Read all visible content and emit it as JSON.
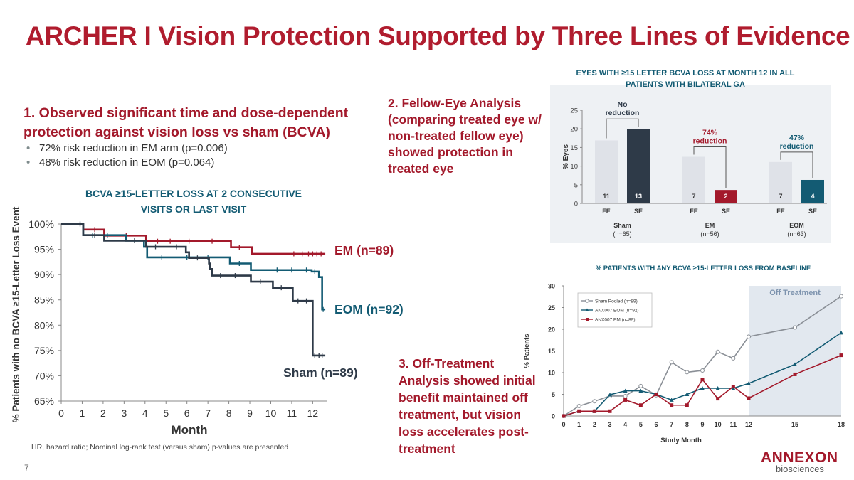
{
  "page": {
    "title": "ARCHER I Vision Protection Supported by Three Lines of Evidence",
    "section1": {
      "line1": "1.  Observed significant time and dose-dependent",
      "line2": "protection against vision loss vs sham (BCVA)",
      "bullets": [
        "72% risk reduction in EM arm (p=0.006)",
        "48% risk reduction in EOM (p=0.064)"
      ]
    },
    "section2": {
      "heading": "2.  Fellow-Eye Analysis",
      "body": "(comparing treated eye w/ non-treated fellow eye) showed protection in treated eye"
    },
    "section3": {
      "heading": "3.  Off-Treatment",
      "body": "Analysis showed initial benefit maintained off treatment, but vision loss accelerates post-treatment"
    },
    "footnote": "HR, hazard ratio; Nominal log-rank test (versus sham) p-values are presented",
    "page_number": "7",
    "logo": {
      "name": "ANNEXON",
      "sub": "biosciences"
    },
    "colors": {
      "em": "#a3192b",
      "eom": "#135b73",
      "sham": "#2e3a48",
      "fe": "#dfe2e8",
      "title": "#b01c2e"
    }
  },
  "chart_data": [
    {
      "type": "line",
      "subtype": "kaplan-meier",
      "title": [
        "BCVA ≥15-LETTER LOSS AT 2 CONSECUTIVE",
        "VISITS OR LAST VISIT"
      ],
      "xlabel": "Month",
      "ylabel": "% Patients with no BCVA ≥15-Letter Loss Event",
      "xlim": [
        0,
        12.7
      ],
      "ylim": [
        65,
        100
      ],
      "xticks": [
        "0",
        "1",
        "2",
        "3",
        "4",
        "5",
        "6",
        "7",
        "8",
        "9",
        "10",
        "11",
        "12"
      ],
      "yticks": [
        "100%",
        "95%",
        "90%",
        "85%",
        "80%",
        "75%",
        "70%",
        "65%"
      ],
      "series": [
        {
          "name": "EM (n=89)",
          "color": "#a3192b",
          "steps": [
            [
              0,
              100
            ],
            [
              1.05,
              98.9
            ],
            [
              2.05,
              97.7
            ],
            [
              4.05,
              96.6
            ],
            [
              8.1,
              95.4
            ],
            [
              9.1,
              94.1
            ],
            [
              12.6,
              94.1
            ]
          ],
          "censors": [
            [
              1.6,
              98.9
            ],
            [
              3.1,
              97.7
            ],
            [
              4.6,
              96.6
            ],
            [
              5.2,
              96.6
            ],
            [
              6.1,
              96.6
            ],
            [
              7.2,
              96.6
            ],
            [
              8.5,
              95.4
            ],
            [
              11.1,
              94.1
            ],
            [
              11.5,
              94.1
            ],
            [
              11.8,
              94.1
            ],
            [
              12.0,
              94.1
            ],
            [
              12.2,
              94.1
            ],
            [
              12.4,
              94.1
            ]
          ]
        },
        {
          "name": "EOM (n=92)",
          "color": "#135b73",
          "steps": [
            [
              0,
              100
            ],
            [
              1.05,
              97.8
            ],
            [
              3.1,
              96.7
            ],
            [
              3.95,
              95.5
            ],
            [
              4.1,
              93.4
            ],
            [
              8.05,
              92.2
            ],
            [
              9.05,
              90.9
            ],
            [
              11.95,
              90.6
            ],
            [
              12.3,
              89.5
            ],
            [
              12.45,
              83.1
            ],
            [
              12.6,
              83.1
            ]
          ],
          "censors": [
            [
              1.5,
              97.8
            ],
            [
              2.2,
              97.8
            ],
            [
              3.5,
              96.7
            ],
            [
              4.8,
              93.4
            ],
            [
              6.0,
              93.4
            ],
            [
              7.0,
              93.4
            ],
            [
              8.5,
              92.2
            ],
            [
              10.3,
              90.9
            ],
            [
              11.0,
              90.9
            ],
            [
              11.7,
              90.9
            ],
            [
              12.1,
              90.6
            ],
            [
              12.5,
              83.1
            ]
          ]
        },
        {
          "name": "Sham (n=89)",
          "color": "#2e3a48",
          "steps": [
            [
              0,
              100
            ],
            [
              1.05,
              97.8
            ],
            [
              2.05,
              96.7
            ],
            [
              3.05,
              96.7
            ],
            [
              4.05,
              95.5
            ],
            [
              5.95,
              94.4
            ],
            [
              6.1,
              93.3
            ],
            [
              7.05,
              92.2
            ],
            [
              7.1,
              91.1
            ],
            [
              7.2,
              89.8
            ],
            [
              9.05,
              88.6
            ],
            [
              10.1,
              87.4
            ],
            [
              11.05,
              84.8
            ],
            [
              11.95,
              84.8
            ],
            [
              12.0,
              74.0
            ],
            [
              12.6,
              74.0
            ]
          ],
          "censors": [
            [
              0.9,
              100
            ],
            [
              1.6,
              97.8
            ],
            [
              3.5,
              96.7
            ],
            [
              4.5,
              95.5
            ],
            [
              5.5,
              95.5
            ],
            [
              6.5,
              93.3
            ],
            [
              7.6,
              89.8
            ],
            [
              8.3,
              89.8
            ],
            [
              9.5,
              88.6
            ],
            [
              10.5,
              87.4
            ],
            [
              11.3,
              84.8
            ],
            [
              11.7,
              84.8
            ],
            [
              12.1,
              74.0
            ],
            [
              12.3,
              74.0
            ],
            [
              12.45,
              74.0
            ]
          ]
        }
      ]
    },
    {
      "type": "bar",
      "title": [
        "EYES WITH ≥15 LETTER BCVA LOSS AT MONTH 12 IN ALL",
        "PATIENTS WITH BILATERAL GA"
      ],
      "ylabel": "% Eyes",
      "ylim": [
        0,
        25
      ],
      "yticks": [
        "0",
        "5",
        "10",
        "15",
        "20",
        "25"
      ],
      "groups": [
        {
          "label": "Sham",
          "n": "(n=65)",
          "annotation": [
            "No",
            "reduction"
          ],
          "bars": [
            {
              "cat": "FE",
              "value": 16.9,
              "label": "11",
              "color": "#dfe2e8"
            },
            {
              "cat": "SE",
              "value": 20.0,
              "label": "13",
              "color": "#2e3a48"
            }
          ]
        },
        {
          "label": "EM",
          "n": "(n=56)",
          "annotation": [
            "74%",
            "reduction"
          ],
          "bars": [
            {
              "cat": "FE",
              "value": 12.5,
              "label": "7",
              "color": "#dfe2e8"
            },
            {
              "cat": "SE",
              "value": 3.6,
              "label": "2",
              "color": "#a3192b"
            }
          ]
        },
        {
          "label": "EOM",
          "n": "(n=63)",
          "annotation": [
            "47%",
            "reduction"
          ],
          "bars": [
            {
              "cat": "FE",
              "value": 11.1,
              "label": "7",
              "color": "#dfe2e8"
            },
            {
              "cat": "SE",
              "value": 6.3,
              "label": "4",
              "color": "#135b73"
            }
          ]
        }
      ]
    },
    {
      "type": "line",
      "title": "% PATIENTS WITH ANY BCVA ≥15-LETTER LOSS FROM BASELINE",
      "xlabel": "Study Month",
      "ylabel": "% Patients",
      "xlim": [
        0,
        18
      ],
      "ylim": [
        0,
        30
      ],
      "xticks": [
        0,
        1,
        2,
        3,
        4,
        5,
        6,
        7,
        8,
        9,
        10,
        11,
        12,
        15,
        18
      ],
      "yticks": [
        0,
        5,
        10,
        15,
        20,
        25,
        30
      ],
      "shaded_region": {
        "from": 12,
        "to": 18,
        "label": "Off Treatment"
      },
      "x": [
        0,
        1,
        2,
        3,
        4,
        5,
        6,
        7,
        8,
        9,
        10,
        11,
        12,
        15,
        18
      ],
      "series": [
        {
          "name": "Sham Pooled (n=89)",
          "color": "#8a8f96",
          "marker": "circle",
          "values": [
            0,
            2.3,
            3.4,
            4.6,
            4.6,
            6.9,
            4.8,
            12.4,
            10.1,
            10.5,
            14.8,
            13.3,
            18.3,
            20.4,
            27.6
          ]
        },
        {
          "name": "ANX007 EOM (n=92)",
          "color": "#135b73",
          "marker": "triangle",
          "values": [
            0,
            1.1,
            1.1,
            4.9,
            5.8,
            5.8,
            5.0,
            3.7,
            5.0,
            6.4,
            6.4,
            6.4,
            7.5,
            11.9,
            19.2
          ]
        },
        {
          "name": "ANX007 EM (n=89)",
          "color": "#a3192b",
          "marker": "square",
          "values": [
            0,
            1.1,
            1.1,
            1.1,
            3.7,
            2.5,
            5.0,
            2.5,
            2.5,
            8.4,
            4.0,
            6.8,
            4.1,
            9.6,
            14.0
          ]
        }
      ]
    }
  ]
}
